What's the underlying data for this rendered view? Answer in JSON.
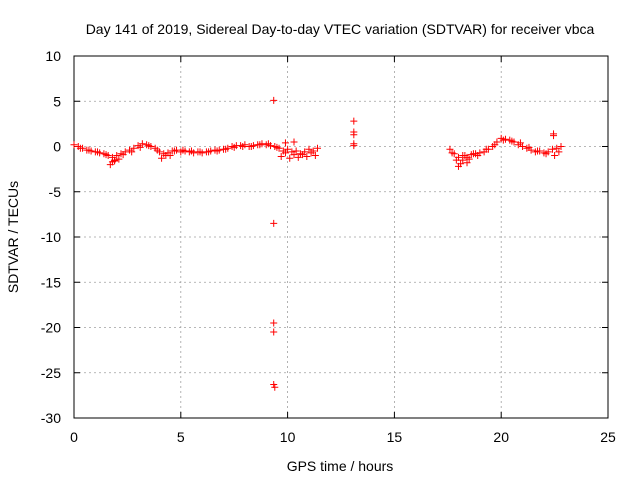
{
  "chart_data": {
    "type": "scatter",
    "title": "Day 141 of 2019, Sidereal Day-to-day VTEC variation (SDTVAR) for receiver vbca",
    "xlabel": "GPS time / hours",
    "ylabel": "SDTVAR / TECUs",
    "xlim": [
      0,
      25
    ],
    "ylim": [
      -30,
      10
    ],
    "xticks": [
      0,
      5,
      10,
      15,
      20,
      25
    ],
    "yticks": [
      -30,
      -25,
      -20,
      -15,
      -10,
      -5,
      0,
      5,
      10
    ],
    "xtick_labels": [
      "0",
      "5",
      "10",
      "15",
      "20",
      "25"
    ],
    "ytick_labels": [
      "-30",
      "-25",
      "-20",
      "-15",
      "-10",
      "-5",
      "0",
      "5",
      "10"
    ],
    "grid": true,
    "marker": "+",
    "color": "#ff0000",
    "series": [
      {
        "name": "SDTVAR",
        "x": [
          0.0,
          0.2,
          0.4,
          0.6,
          0.8,
          1.0,
          1.2,
          1.4,
          1.6,
          1.8,
          2.0,
          2.2,
          2.4,
          2.6,
          2.8,
          3.0,
          3.2,
          3.4,
          3.6,
          3.8,
          4.0,
          4.2,
          4.4,
          4.6,
          4.8,
          5.0,
          5.2,
          5.4,
          5.6,
          5.8,
          6.0,
          6.2,
          6.4,
          6.6,
          6.8,
          7.0,
          7.2,
          7.4,
          7.6,
          7.8,
          8.0,
          8.2,
          8.4,
          8.6,
          8.8,
          9.0,
          9.2,
          9.4,
          9.6,
          9.8,
          10.0,
          10.2,
          10.4,
          10.6,
          10.8,
          11.0,
          11.2,
          11.4,
          0.3,
          0.7,
          1.1,
          1.5,
          1.9,
          2.3,
          2.7,
          3.1,
          3.5,
          3.9,
          4.3,
          4.7,
          5.1,
          5.5,
          5.9,
          6.3,
          6.7,
          7.1,
          7.5,
          7.9,
          8.3,
          8.7,
          9.1,
          9.5,
          9.9,
          10.3,
          10.7,
          11.1,
          1.7,
          1.8,
          1.9,
          2.1,
          4.1,
          4.5,
          9.7,
          10.1,
          10.5,
          10.9,
          11.3,
          9.9,
          10.3,
          9.35,
          9.35,
          9.35,
          9.35,
          9.35,
          9.4,
          13.1,
          13.1,
          13.1,
          13.1,
          13.1,
          17.6,
          17.8,
          18.0,
          18.2,
          18.4,
          18.6,
          18.8,
          19.0,
          19.2,
          19.4,
          19.6,
          19.8,
          20.0,
          20.2,
          20.4,
          20.6,
          20.8,
          21.0,
          21.2,
          21.4,
          21.6,
          21.8,
          22.0,
          22.2,
          22.4,
          22.6,
          22.8,
          17.7,
          17.9,
          18.1,
          18.3,
          18.5,
          18.7,
          18.9,
          19.3,
          19.7,
          20.1,
          20.5,
          20.9,
          21.3,
          21.7,
          22.1,
          22.5,
          22.7,
          18.0,
          18.2,
          18.4,
          22.45,
          22.45
        ],
        "y": [
          0.2,
          0.0,
          -0.2,
          -0.4,
          -0.5,
          -0.6,
          -0.7,
          -0.8,
          -1.0,
          -1.2,
          -1.0,
          -0.8,
          -0.6,
          -0.4,
          -0.2,
          0.1,
          0.3,
          0.2,
          0.0,
          -0.2,
          -0.6,
          -0.8,
          -0.7,
          -0.5,
          -0.4,
          -0.6,
          -0.5,
          -0.6,
          -0.7,
          -0.6,
          -0.7,
          -0.6,
          -0.5,
          -0.4,
          -0.4,
          -0.3,
          -0.2,
          0.0,
          0.1,
          0.1,
          0.2,
          0.0,
          0.1,
          0.2,
          0.3,
          0.2,
          0.1,
          0.0,
          -0.2,
          -0.5,
          -0.3,
          -0.6,
          -0.5,
          -0.8,
          -0.6,
          -0.3,
          -0.5,
          -0.2,
          -0.2,
          -0.4,
          -0.6,
          -0.9,
          -1.5,
          -0.9,
          -0.6,
          -0.1,
          0.1,
          -0.4,
          -1.0,
          -0.5,
          -0.4,
          -0.5,
          -0.6,
          -0.6,
          -0.5,
          -0.3,
          -0.1,
          0.0,
          0.0,
          0.2,
          0.3,
          -0.1,
          -0.7,
          -0.9,
          -0.9,
          -0.7,
          -2.0,
          -1.7,
          -1.6,
          -1.4,
          -1.3,
          -1.0,
          -1.1,
          -1.3,
          -1.2,
          -1.1,
          -1.0,
          0.4,
          0.5,
          5.1,
          -8.5,
          -19.5,
          -20.5,
          -26.3,
          -26.6,
          2.8,
          1.6,
          1.3,
          0.3,
          0.1,
          -0.3,
          -0.8,
          -1.2,
          -1.5,
          -1.2,
          -0.9,
          -0.8,
          -0.7,
          -0.6,
          -0.3,
          0.0,
          0.5,
          0.9,
          0.8,
          0.7,
          0.5,
          0.2,
          0.0,
          -0.2,
          -0.4,
          -0.6,
          -0.5,
          -0.7,
          -0.6,
          -0.3,
          -0.2,
          0.0,
          -0.7,
          -1.5,
          -1.9,
          -1.0,
          -1.4,
          -0.8,
          -1.0,
          -0.3,
          0.2,
          0.7,
          0.6,
          0.4,
          -0.1,
          -0.5,
          -0.8,
          -1.0,
          -0.6,
          -2.2,
          -1.0,
          -1.8,
          1.4,
          1.2
        ]
      }
    ]
  }
}
